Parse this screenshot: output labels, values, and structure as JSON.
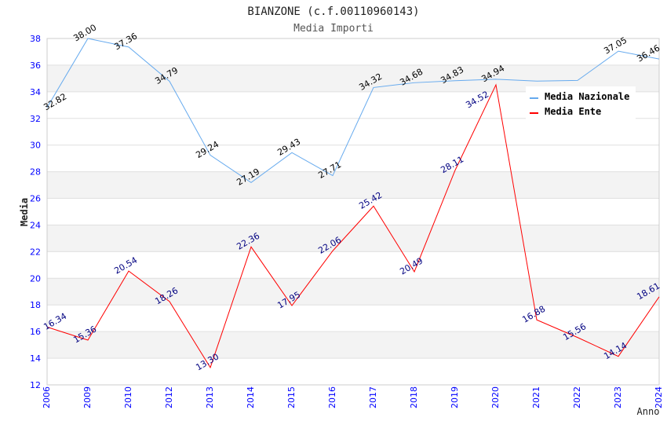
{
  "chart_data": {
    "type": "line",
    "title": "BIANZONE (c.f.00110960143)",
    "subtitle": "Media Importi",
    "xlabel": "Anno",
    "ylabel": "Media",
    "ylim": [
      12,
      38
    ],
    "yticks": [
      12,
      14,
      16,
      18,
      20,
      22,
      24,
      26,
      28,
      30,
      32,
      34,
      36,
      38
    ],
    "bands": [
      [
        14,
        16
      ],
      [
        18,
        20
      ],
      [
        22,
        24
      ],
      [
        26,
        28
      ],
      [
        34,
        36
      ]
    ],
    "categories": [
      "2006",
      "2009",
      "2010",
      "2012",
      "2013",
      "2014",
      "2015",
      "2016",
      "2017",
      "2018",
      "2019",
      "2020",
      "2021",
      "2022",
      "2023",
      "2024"
    ],
    "legend_position": "top-right",
    "series": [
      {
        "name": "Media Nazionale",
        "color": "#66aaee",
        "label_color": "#000000",
        "values": [
          32.82,
          38.0,
          37.36,
          34.79,
          29.24,
          27.19,
          29.43,
          27.71,
          34.32,
          34.68,
          34.83,
          34.94,
          34.8,
          34.85,
          37.05,
          36.46
        ],
        "labels": [
          "32.82",
          "38.00",
          "37.36",
          "34.79",
          "29.24",
          "27.19",
          "29.43",
          "27.71",
          "34.32",
          "34.68",
          "34.83",
          "34.94",
          null,
          null,
          "37.05",
          "36.46"
        ]
      },
      {
        "name": "Media Ente",
        "color": "#ff0000",
        "label_color": "#000080",
        "values": [
          16.34,
          15.36,
          20.54,
          18.26,
          13.3,
          22.36,
          17.95,
          22.06,
          25.42,
          20.49,
          28.11,
          34.52,
          16.88,
          15.56,
          14.14,
          18.61
        ],
        "labels": [
          "16.34",
          "15.36",
          "20.54",
          "18.26",
          "13.30",
          "22.36",
          "17.95",
          "22.06",
          "25.42",
          "20.49",
          "28.11",
          "34.52",
          "16.88",
          "15.56",
          "14.14",
          "18.61"
        ]
      }
    ]
  }
}
